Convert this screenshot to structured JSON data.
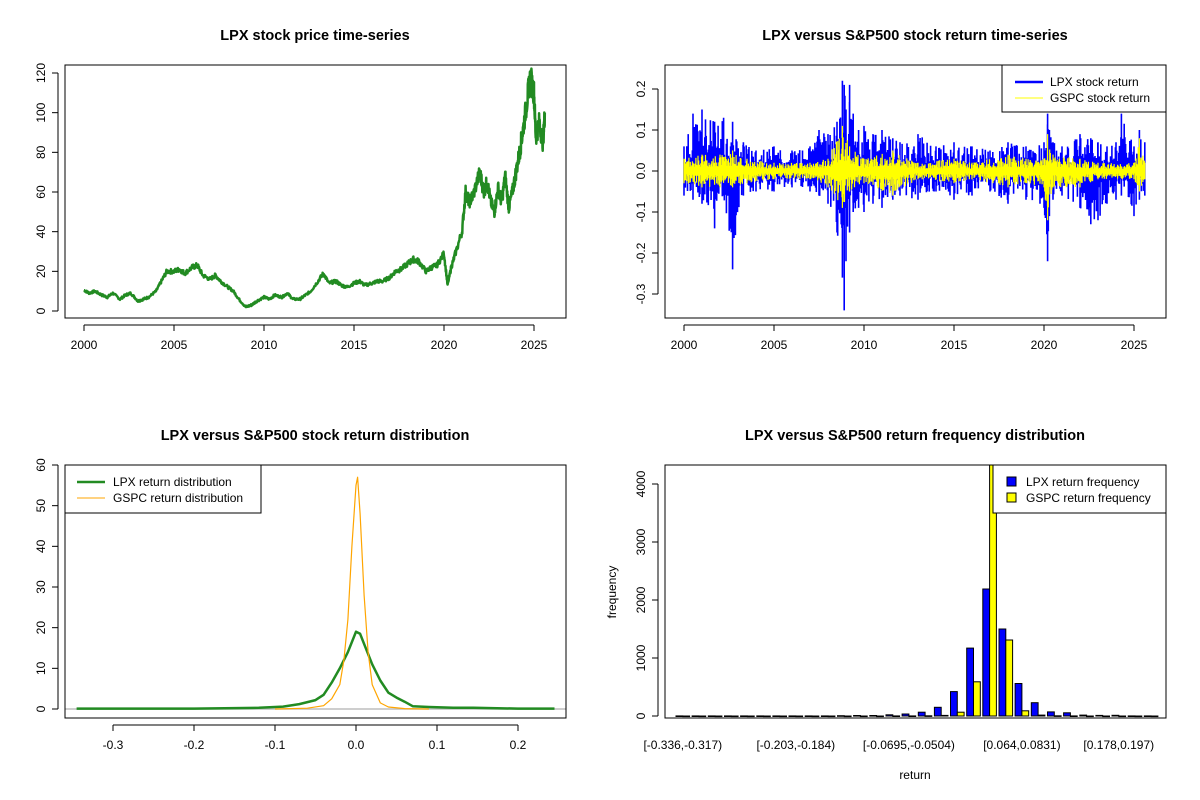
{
  "chart_data": [
    {
      "type": "line",
      "title": "LPX stock price time-series",
      "xlabel": "",
      "ylabel": "",
      "xlim": [
        1999,
        2026.6
      ],
      "ylim": [
        -3.5,
        125
      ],
      "xticks": [
        2000,
        2005,
        2010,
        2015,
        2020,
        2025
      ],
      "xtick_labels": [
        "2000",
        "2005",
        "2010",
        "2015",
        "2020",
        "2025"
      ],
      "yticks": [
        0,
        20,
        40,
        60,
        80,
        100,
        120
      ],
      "ytick_labels": [
        "0",
        "20",
        "40",
        "60",
        "80",
        "100",
        "120"
      ],
      "color": "#228B22",
      "series": [
        {
          "name": "LPX",
          "x": [
            2000.0,
            2000.3,
            2000.6,
            2001.0,
            2001.3,
            2001.6,
            2002.0,
            2002.3,
            2002.6,
            2003.0,
            2003.3,
            2003.6,
            2004.0,
            2004.3,
            2004.6,
            2005.0,
            2005.3,
            2005.6,
            2006.0,
            2006.3,
            2006.6,
            2007.0,
            2007.3,
            2007.6,
            2008.0,
            2008.3,
            2008.6,
            2009.0,
            2009.3,
            2009.6,
            2010.0,
            2010.3,
            2010.6,
            2011.0,
            2011.3,
            2011.6,
            2012.0,
            2012.3,
            2012.6,
            2013.0,
            2013.3,
            2013.6,
            2014.0,
            2014.3,
            2014.6,
            2015.0,
            2015.3,
            2015.6,
            2016.0,
            2016.3,
            2016.6,
            2017.0,
            2017.3,
            2017.6,
            2018.0,
            2018.3,
            2018.6,
            2019.0,
            2019.3,
            2019.6,
            2020.0,
            2020.2,
            2020.4,
            2020.6,
            2021.0,
            2021.2,
            2021.4,
            2021.6,
            2022.0,
            2022.2,
            2022.4,
            2022.6,
            2022.8,
            2023.0,
            2023.2,
            2023.4,
            2023.6,
            2023.8,
            2024.0,
            2024.2,
            2024.4,
            2024.6,
            2024.8,
            2025.0,
            2025.1,
            2025.3,
            2025.5,
            2025.6
          ],
          "y": [
            10.5,
            9,
            10,
            8,
            7,
            9,
            6,
            8,
            9,
            5,
            6,
            7,
            10,
            15,
            20,
            20,
            21,
            19,
            22,
            23,
            18,
            16,
            18,
            15,
            12,
            10,
            6,
            2,
            3,
            5,
            7,
            6,
            8,
            7,
            9,
            6,
            6,
            8,
            10,
            15,
            19,
            14,
            15,
            13,
            12,
            14,
            15,
            13,
            14,
            15,
            15,
            17,
            20,
            21,
            24,
            26,
            25,
            20,
            22,
            23,
            29,
            13,
            22,
            28,
            40,
            60,
            55,
            58,
            70,
            60,
            65,
            55,
            50,
            62,
            55,
            68,
            52,
            60,
            70,
            80,
            92,
            105,
            118,
            110,
            88,
            95,
            85,
            100
          ]
        }
      ]
    },
    {
      "type": "line",
      "title": "LPX versus S&P500 stock return time-series",
      "xlabel": "",
      "ylabel": "",
      "xlim": [
        1999,
        2026.6
      ],
      "ylim": [
        -0.355,
        0.255
      ],
      "xticks": [
        2000,
        2005,
        2010,
        2015,
        2020,
        2025
      ],
      "xtick_labels": [
        "2000",
        "2005",
        "2010",
        "2015",
        "2020",
        "2025"
      ],
      "yticks": [
        -0.3,
        -0.2,
        -0.1,
        0.0,
        0.1,
        0.2
      ],
      "ytick_labels": [
        "-0.3",
        "-0.2",
        "-0.1",
        "0.0",
        "0.1",
        "0.2"
      ],
      "legend": "top-right",
      "series": [
        {
          "name": "LPX stock return",
          "color": "#0000FF",
          "x": [
            2000.0,
            2000.5,
            2001.0,
            2001.7,
            2002.2,
            2002.7,
            2003.3,
            2004.0,
            2005.0,
            2006.0,
            2007.0,
            2007.5,
            2008.0,
            2008.5,
            2008.8,
            2008.9,
            2009.0,
            2009.2,
            2009.4,
            2009.7,
            2010.0,
            2010.5,
            2011.0,
            2011.6,
            2012.0,
            2013.0,
            2014.0,
            2015.0,
            2016.0,
            2017.0,
            2018.0,
            2019.0,
            2020.0,
            2020.2,
            2020.3,
            2020.5,
            2021.0,
            2022.0,
            2022.6,
            2023.0,
            2023.5,
            2024.0,
            2024.3,
            2025.0,
            2025.3,
            2025.6
          ],
          "y_high": [
            0.06,
            0.14,
            0.15,
            0.12,
            0.13,
            0.12,
            0.07,
            0.05,
            0.06,
            0.05,
            0.06,
            0.1,
            0.09,
            0.12,
            0.22,
            0.21,
            0.15,
            0.21,
            0.14,
            0.1,
            0.11,
            0.09,
            0.1,
            0.08,
            0.07,
            0.09,
            0.06,
            0.07,
            0.06,
            0.05,
            0.07,
            0.06,
            0.07,
            0.14,
            0.1,
            0.07,
            0.06,
            0.09,
            0.08,
            0.07,
            0.06,
            0.07,
            0.14,
            0.06,
            0.1,
            0.07
          ],
          "y_low": [
            -0.06,
            -0.07,
            -0.08,
            -0.14,
            -0.06,
            -0.24,
            -0.06,
            -0.05,
            -0.05,
            -0.04,
            -0.05,
            -0.06,
            -0.08,
            -0.15,
            -0.26,
            -0.34,
            -0.22,
            -0.15,
            -0.1,
            -0.09,
            -0.1,
            -0.08,
            -0.09,
            -0.07,
            -0.06,
            -0.07,
            -0.05,
            -0.07,
            -0.06,
            -0.05,
            -0.08,
            -0.07,
            -0.09,
            -0.22,
            -0.11,
            -0.07,
            -0.06,
            -0.09,
            -0.13,
            -0.12,
            -0.08,
            -0.07,
            -0.06,
            -0.11,
            -0.07,
            -0.06
          ]
        },
        {
          "name": "GSPC stock return",
          "color": "#FFFF00",
          "x": [
            2000.0,
            2001.0,
            2002.0,
            2002.7,
            2003.5,
            2005.0,
            2007.0,
            2008.0,
            2008.8,
            2009.2,
            2010.0,
            2011.6,
            2013.0,
            2015.0,
            2016.0,
            2018.0,
            2019.0,
            2020.0,
            2020.2,
            2020.5,
            2022.0,
            2023.0,
            2025.0,
            2025.3,
            2025.6
          ],
          "y_high": [
            0.03,
            0.04,
            0.04,
            0.05,
            0.03,
            0.02,
            0.02,
            0.03,
            0.11,
            0.06,
            0.03,
            0.05,
            0.02,
            0.03,
            0.02,
            0.04,
            0.03,
            0.03,
            0.09,
            0.04,
            0.03,
            0.02,
            0.02,
            0.08,
            0.02
          ],
          "y_low": [
            -0.03,
            -0.04,
            -0.04,
            -0.04,
            -0.03,
            -0.02,
            -0.02,
            -0.04,
            -0.09,
            -0.05,
            -0.03,
            -0.06,
            -0.02,
            -0.03,
            -0.02,
            -0.04,
            -0.03,
            -0.04,
            -0.12,
            -0.04,
            -0.04,
            -0.02,
            -0.02,
            -0.05,
            -0.02
          ]
        }
      ]
    },
    {
      "type": "line",
      "title": "LPX versus S&P500 stock return distribution",
      "xlabel": "",
      "ylabel": "",
      "xlim": [
        -0.364,
        0.257
      ],
      "ylim": [
        -2.2,
        60
      ],
      "xticks": [
        -0.3,
        -0.2,
        -0.1,
        0.0,
        0.1,
        0.2
      ],
      "xtick_labels": [
        "-0.3",
        "-0.2",
        "-0.1",
        "0.0",
        "0.1",
        "0.2"
      ],
      "yticks": [
        0,
        10,
        20,
        30,
        40,
        50,
        60
      ],
      "ytick_labels": [
        "0",
        "10",
        "20",
        "30",
        "40",
        "50",
        "60"
      ],
      "legend": "top-left",
      "series": [
        {
          "name": "LPX return distribution",
          "color": "#228B22",
          "x": [
            -0.345,
            -0.2,
            -0.12,
            -0.09,
            -0.07,
            -0.05,
            -0.04,
            -0.03,
            -0.02,
            -0.01,
            0.0,
            0.005,
            0.01,
            0.02,
            0.03,
            0.04,
            0.05,
            0.06,
            0.07,
            0.09,
            0.12,
            0.145,
            0.2,
            0.245
          ],
          "y": [
            0.1,
            0.1,
            0.3,
            0.6,
            1.2,
            2.2,
            3.5,
            6.5,
            10,
            14,
            19,
            18.5,
            16,
            11,
            7,
            4,
            2.8,
            1.8,
            0.7,
            0.5,
            0.3,
            0.3,
            0.1,
            0.1
          ]
        },
        {
          "name": "GSPC return distribution",
          "color": "#FFA500",
          "x": [
            -0.1,
            -0.06,
            -0.04,
            -0.03,
            -0.02,
            -0.015,
            -0.01,
            -0.005,
            0.0,
            0.002,
            0.005,
            0.01,
            0.015,
            0.02,
            0.03,
            0.04,
            0.06,
            0.09
          ],
          "y": [
            0,
            0.2,
            0.8,
            2.5,
            6,
            12,
            22,
            40,
            55,
            57,
            48,
            28,
            14,
            6,
            1.5,
            0.5,
            0.1,
            0
          ]
        }
      ]
    },
    {
      "type": "bar",
      "title": "LPX versus S&P500 return frequency distribution",
      "xlabel": "return",
      "ylabel": "frequency",
      "ylim": [
        0,
        4330
      ],
      "yticks": [
        0,
        1000,
        2000,
        3000,
        4000
      ],
      "ytick_labels": [
        "0",
        "1000",
        "2000",
        "3000",
        "4000"
      ],
      "legend": "top-right",
      "categories_labeled": [
        "[-0.336,-0.317)",
        "[-0.203,-0.184)",
        "[-0.0695,-0.0504)",
        "[0.064,0.0831)",
        "[0.178,0.197)"
      ],
      "labeled_indices": [
        0,
        7,
        14,
        21,
        27
      ],
      "bin_count": 30,
      "series": [
        {
          "name": "LPX return frequency",
          "color": "#0000FF",
          "values": [
            1,
            1,
            1,
            1,
            1,
            1,
            1,
            1,
            1,
            2,
            5,
            8,
            8,
            20,
            35,
            65,
            150,
            420,
            1170,
            2190,
            1500,
            560,
            230,
            70,
            55,
            15,
            10,
            12,
            2,
            1
          ]
        },
        {
          "name": "GSPC return frequency",
          "color": "#FFFF00",
          "values": [
            0,
            0,
            0,
            0,
            0,
            0,
            0,
            0,
            0,
            0,
            0,
            0,
            0,
            1,
            2,
            4,
            10,
            65,
            590,
            4330,
            1310,
            90,
            15,
            3,
            1,
            0,
            0,
            0,
            0,
            0
          ]
        }
      ]
    }
  ]
}
